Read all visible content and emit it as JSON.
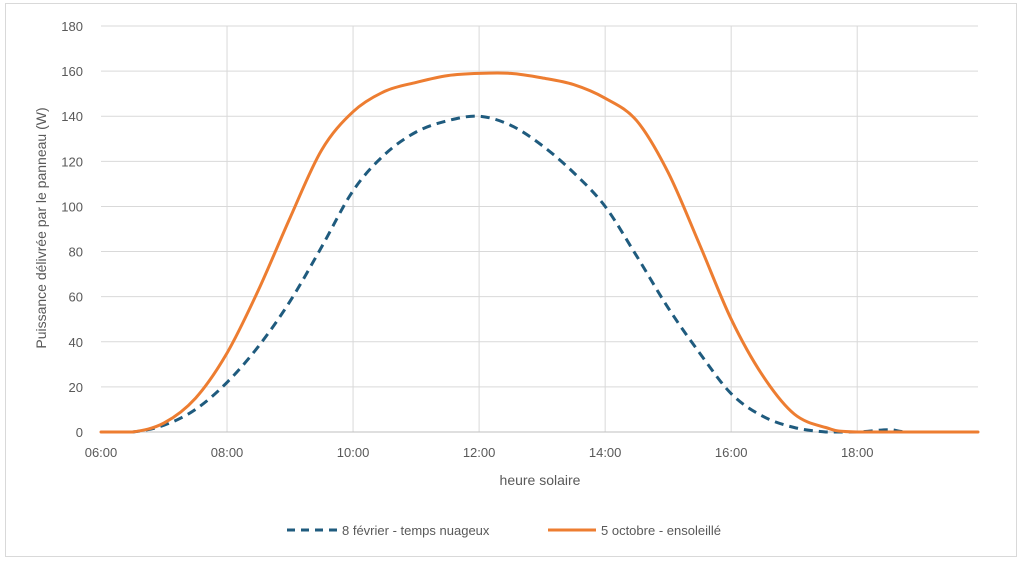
{
  "chart_data": {
    "type": "line",
    "title": "",
    "xlabel": "heure solaire",
    "ylabel": "Puissance délivrée par le panneau (W)",
    "xlim": [
      "06:00",
      "19:55"
    ],
    "ylim": [
      0,
      180
    ],
    "x_ticks": [
      "06:00",
      "08:00",
      "10:00",
      "12:00",
      "14:00",
      "16:00",
      "18:00"
    ],
    "y_ticks": [
      "0",
      "20",
      "40",
      "60",
      "80",
      "100",
      "120",
      "140",
      "160",
      "180"
    ],
    "grid": "on",
    "legend_position": "bottom",
    "series": [
      {
        "name": "8 février - temps nuageux",
        "color": "#1f5b7e",
        "style": "dashed",
        "points": [
          [
            "06:00",
            0
          ],
          [
            "06:30",
            0
          ],
          [
            "07:00",
            3
          ],
          [
            "07:30",
            10
          ],
          [
            "08:00",
            22
          ],
          [
            "08:30",
            38
          ],
          [
            "09:00",
            58
          ],
          [
            "09:30",
            82
          ],
          [
            "10:00",
            107
          ],
          [
            "10:30",
            123
          ],
          [
            "11:00",
            133
          ],
          [
            "11:30",
            138
          ],
          [
            "12:00",
            140
          ],
          [
            "12:30",
            136
          ],
          [
            "13:00",
            127
          ],
          [
            "13:30",
            115
          ],
          [
            "14:00",
            100
          ],
          [
            "14:30",
            78
          ],
          [
            "15:00",
            55
          ],
          [
            "15:30",
            35
          ],
          [
            "16:00",
            17
          ],
          [
            "16:30",
            7
          ],
          [
            "17:00",
            2
          ],
          [
            "17:30",
            0
          ],
          [
            "18:00",
            0
          ],
          [
            "18:30",
            1
          ],
          [
            "18:50",
            0
          ],
          [
            "19:55",
            0
          ]
        ]
      },
      {
        "name": "5 octobre - ensoleillé",
        "color": "#ed7d31",
        "style": "solid",
        "points": [
          [
            "06:00",
            0
          ],
          [
            "06:30",
            0
          ],
          [
            "07:00",
            4
          ],
          [
            "07:30",
            15
          ],
          [
            "08:00",
            35
          ],
          [
            "08:30",
            63
          ],
          [
            "09:00",
            95
          ],
          [
            "09:30",
            125
          ],
          [
            "10:00",
            142
          ],
          [
            "10:30",
            151
          ],
          [
            "11:00",
            155
          ],
          [
            "11:30",
            158
          ],
          [
            "12:00",
            159
          ],
          [
            "12:30",
            159
          ],
          [
            "13:00",
            157
          ],
          [
            "13:30",
            154
          ],
          [
            "14:00",
            148
          ],
          [
            "14:30",
            138
          ],
          [
            "15:00",
            115
          ],
          [
            "15:30",
            83
          ],
          [
            "16:00",
            50
          ],
          [
            "16:30",
            25
          ],
          [
            "17:00",
            8
          ],
          [
            "17:30",
            2
          ],
          [
            "18:00",
            0
          ],
          [
            "19:55",
            0
          ]
        ]
      }
    ]
  }
}
